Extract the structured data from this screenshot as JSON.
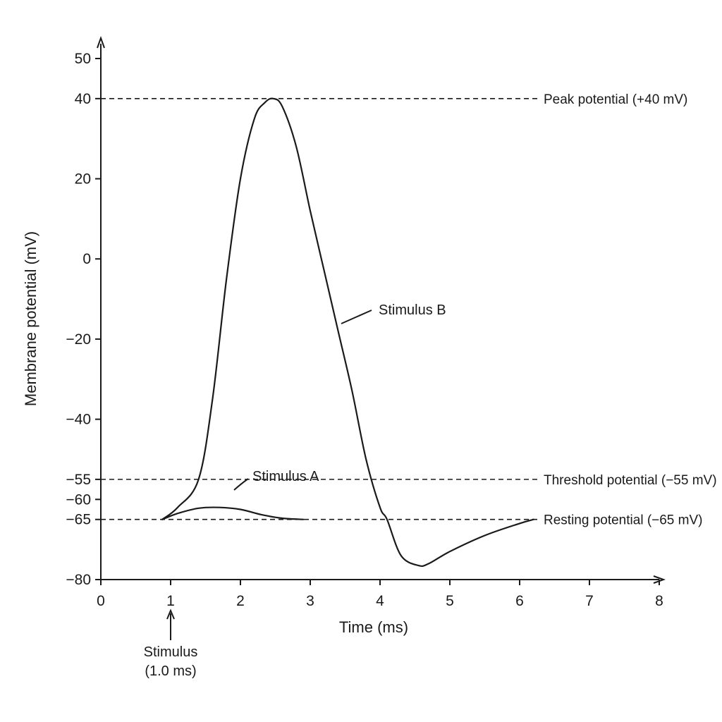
{
  "chart_data": {
    "type": "line",
    "title": "",
    "xlabel": "Time (ms)",
    "ylabel": "Membrane potential (mV)",
    "xlim": [
      0,
      8
    ],
    "ylim": [
      -80,
      50
    ],
    "x_ticks": [
      0,
      1,
      2,
      3,
      4,
      5,
      6,
      7,
      8
    ],
    "y_ticks": [
      50,
      40,
      20,
      0,
      -20,
      -40,
      -55,
      -60,
      -65,
      -80
    ],
    "y_tick_labels": [
      "50",
      "40",
      "20",
      "0",
      "−20",
      "−40",
      "−55",
      "−60",
      "−65",
      "−80"
    ],
    "grid": false,
    "reference_lines": [
      {
        "y": 40,
        "label": "Peak potential (+40 mV)"
      },
      {
        "y": -55,
        "label": "Threshold potential (−55 mV)"
      },
      {
        "y": -65,
        "label": "Resting potential (−65 mV)"
      }
    ],
    "series": [
      {
        "name": "Stimulus B",
        "x": [
          0.88,
          1.1,
          1.4,
          1.6,
          1.8,
          2.0,
          2.2,
          2.35,
          2.47,
          2.6,
          2.8,
          3.0,
          3.2,
          3.4,
          3.6,
          3.8,
          4.0,
          4.1,
          4.3,
          4.55,
          4.7,
          5.0,
          5.5,
          6.0,
          6.2
        ],
        "y": [
          -65,
          -62,
          -55,
          -35,
          -5,
          20,
          35,
          39,
          40,
          38,
          28,
          12,
          -3,
          -18,
          -33,
          -50,
          -62,
          -65,
          -74,
          -76.5,
          -76,
          -73,
          -69,
          -66,
          -65
        ]
      },
      {
        "name": "Stimulus A",
        "x": [
          0.88,
          1.1,
          1.4,
          1.7,
          2.0,
          2.3,
          2.6,
          2.9
        ],
        "y": [
          -65,
          -63.5,
          -62.2,
          -62,
          -62.5,
          -63.8,
          -64.7,
          -65
        ]
      }
    ],
    "annotations": [
      {
        "text": "Stimulus",
        "x": 1.0
      },
      {
        "text": "(1.0 ms)",
        "x": 1.0
      }
    ]
  }
}
